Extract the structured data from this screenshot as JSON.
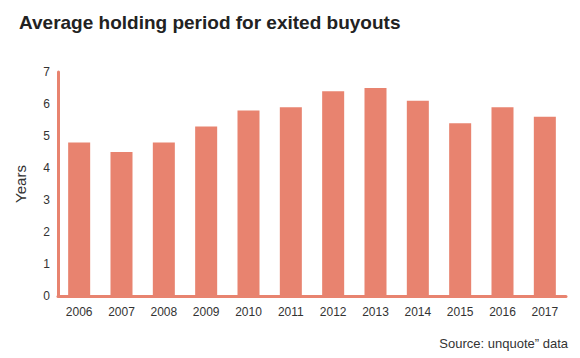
{
  "chart_data": {
    "type": "bar",
    "title": "Average holding period for exited buyouts",
    "y_label": "Years",
    "categories": [
      "2006",
      "2007",
      "2008",
      "2009",
      "2010",
      "2011",
      "2012",
      "2013",
      "2014",
      "2015",
      "2016",
      "2017"
    ],
    "values": [
      4.8,
      4.5,
      4.8,
      5.3,
      5.8,
      5.9,
      6.4,
      6.5,
      6.1,
      5.4,
      5.9,
      5.6
    ],
    "color": "#e8836f",
    "ylim": [
      0,
      7
    ],
    "yticks": [
      0,
      1,
      2,
      3,
      4,
      5,
      6,
      7
    ],
    "grid": false,
    "annotations": [
      "Source: unquote” data"
    ]
  }
}
